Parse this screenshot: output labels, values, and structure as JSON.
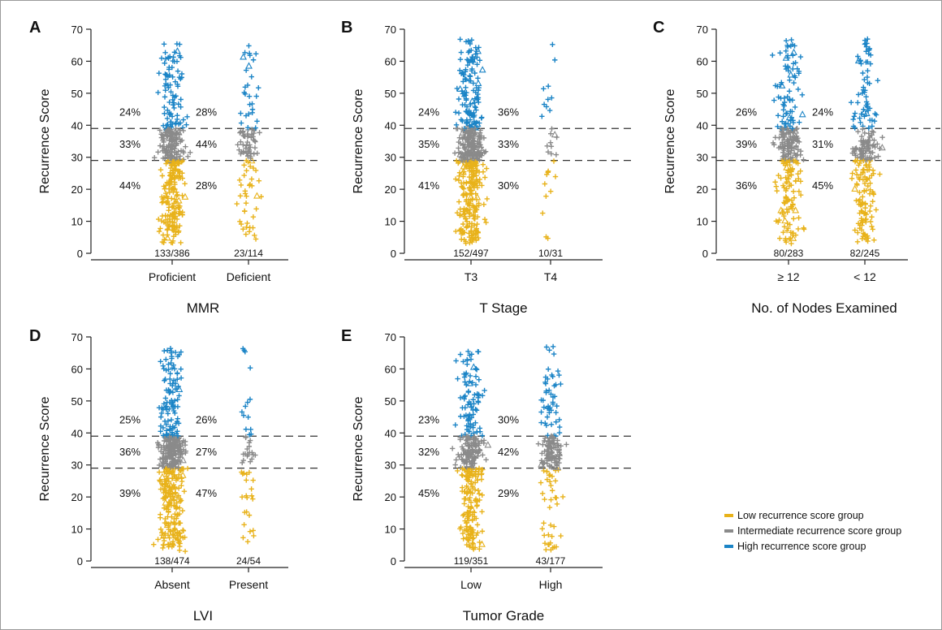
{
  "colors": {
    "low": "#e8b21a",
    "intermediate": "#8a8a8a",
    "high": "#1b84c6",
    "axis": "#222222",
    "dash": "#333333"
  },
  "legend": {
    "items": [
      {
        "label": "Low recurrence score group",
        "color_key": "low"
      },
      {
        "label": "Intermediate recurrence score group",
        "color_key": "intermediate"
      },
      {
        "label": "High recurrence score group",
        "color_key": "high"
      }
    ]
  },
  "chart_data": [
    {
      "type": "scatter",
      "panel": "A",
      "xlabel": "MMR",
      "ylabel": "Recurrence Score",
      "ylim": [
        0,
        70
      ],
      "yticks": [
        0,
        10,
        20,
        30,
        40,
        50,
        60,
        70
      ],
      "cutpoints": [
        29,
        39
      ],
      "categories": [
        {
          "name": "Proficient",
          "count": "133/386",
          "pct_high": "24%",
          "pct_int": "33%",
          "pct_low": "44%"
        },
        {
          "name": "Deficient",
          "count": "23/114",
          "pct_high": "28%",
          "pct_int": "44%",
          "pct_low": "28%"
        }
      ]
    },
    {
      "type": "scatter",
      "panel": "B",
      "xlabel": "T Stage",
      "ylabel": "Recurrence Score",
      "ylim": [
        0,
        70
      ],
      "yticks": [
        0,
        10,
        20,
        30,
        40,
        50,
        60,
        70
      ],
      "cutpoints": [
        29,
        39
      ],
      "categories": [
        {
          "name": "T3",
          "count": "152/497",
          "pct_high": "24%",
          "pct_int": "35%",
          "pct_low": "41%"
        },
        {
          "name": "T4",
          "count": "10/31",
          "pct_high": "36%",
          "pct_int": "33%",
          "pct_low": "30%"
        }
      ]
    },
    {
      "type": "scatter",
      "panel": "C",
      "xlabel": "No. of Nodes Examined",
      "ylabel": "Recurrence Score",
      "ylim": [
        0,
        70
      ],
      "yticks": [
        0,
        10,
        20,
        30,
        40,
        50,
        60,
        70
      ],
      "cutpoints": [
        29,
        39
      ],
      "categories": [
        {
          "name": "≥ 12",
          "count": "80/283",
          "pct_high": "26%",
          "pct_int": "39%",
          "pct_low": "36%"
        },
        {
          "name": "< 12",
          "count": "82/245",
          "pct_high": "24%",
          "pct_int": "31%",
          "pct_low": "45%"
        }
      ]
    },
    {
      "type": "scatter",
      "panel": "D",
      "xlabel": "LVI",
      "ylabel": "Recurrence Score",
      "ylim": [
        0,
        70
      ],
      "yticks": [
        0,
        10,
        20,
        30,
        40,
        50,
        60,
        70
      ],
      "cutpoints": [
        29,
        39
      ],
      "categories": [
        {
          "name": "Absent",
          "count": "138/474",
          "pct_high": "25%",
          "pct_int": "36%",
          "pct_low": "39%"
        },
        {
          "name": "Present",
          "count": "24/54",
          "pct_high": "26%",
          "pct_int": "27%",
          "pct_low": "47%"
        }
      ]
    },
    {
      "type": "scatter",
      "panel": "E",
      "xlabel": "Tumor Grade",
      "ylabel": "Recurrence Score",
      "ylim": [
        0,
        70
      ],
      "yticks": [
        0,
        10,
        20,
        30,
        40,
        50,
        60,
        70
      ],
      "cutpoints": [
        29,
        39
      ],
      "categories": [
        {
          "name": "Low",
          "count": "119/351",
          "pct_high": "23%",
          "pct_int": "32%",
          "pct_low": "45%"
        },
        {
          "name": "High",
          "count": "43/177",
          "pct_high": "30%",
          "pct_int": "42%",
          "pct_low": "29%"
        }
      ]
    }
  ]
}
